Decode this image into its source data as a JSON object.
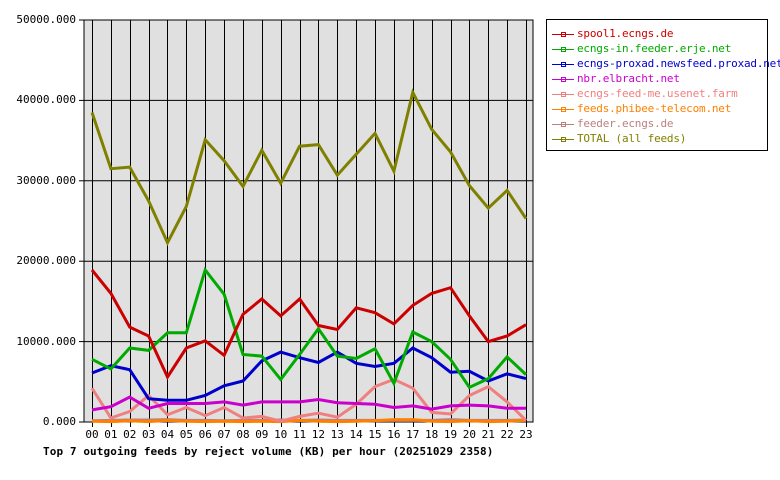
{
  "chart_data": {
    "type": "line",
    "title": "Top 7 outgoing feeds by reject volume (KB) per hour (20251029 2358)",
    "xlabel": "",
    "ylabel": "",
    "ylim": [
      0,
      50000
    ],
    "yticks": [
      "0.000",
      "10000.000",
      "20000.000",
      "30000.000",
      "40000.000",
      "50000.000"
    ],
    "grid": true,
    "legend_position": "right",
    "categories": [
      "00",
      "01",
      "02",
      "03",
      "04",
      "05",
      "06",
      "07",
      "08",
      "09",
      "10",
      "11",
      "12",
      "13",
      "14",
      "15",
      "16",
      "17",
      "18",
      "19",
      "20",
      "21",
      "22",
      "23"
    ],
    "series": [
      {
        "name": "spool1.ecngs.de",
        "color": "#cc0000",
        "values": [
          18900,
          16000,
          11800,
          10700,
          5600,
          9200,
          10100,
          8300,
          13400,
          15300,
          13200,
          15300,
          12000,
          11500,
          14200,
          13600,
          12200,
          14500,
          16000,
          16700,
          13200,
          10000,
          10700,
          12100
        ]
      },
      {
        "name": "ecngs-in.feeder.erje.net",
        "color": "#00aa00",
        "values": [
          7800,
          6600,
          9200,
          8900,
          11100,
          11100,
          18900,
          15900,
          8400,
          8200,
          5300,
          8400,
          11600,
          8200,
          7900,
          9100,
          4800,
          11200,
          10000,
          7800,
          4300,
          5400,
          8100,
          5900
        ]
      },
      {
        "name": "ecngs-proxad.newsfeed.proxad.net",
        "color": "#0000cc",
        "values": [
          6100,
          7000,
          6500,
          2900,
          2700,
          2700,
          3300,
          4500,
          5100,
          7600,
          8700,
          8000,
          7400,
          8700,
          7300,
          6900,
          7300,
          9200,
          8000,
          6200,
          6300,
          5100,
          6000,
          5400
        ]
      },
      {
        "name": "nbr.elbracht.net",
        "color": "#cc00cc",
        "values": [
          1500,
          1900,
          3100,
          1700,
          2300,
          2300,
          2300,
          2500,
          2100,
          2500,
          2500,
          2500,
          2800,
          2400,
          2300,
          2200,
          1800,
          2000,
          1600,
          2000,
          2100,
          2000,
          1700,
          1700
        ]
      },
      {
        "name": "ecngs-feed-me.usenet.farm",
        "color": "#f08080",
        "values": [
          4200,
          500,
          1300,
          3300,
          900,
          1800,
          800,
          1800,
          500,
          700,
          100,
          700,
          1100,
          600,
          2200,
          4400,
          5300,
          4200,
          1200,
          1000,
          3300,
          4400,
          2500,
          200
        ]
      },
      {
        "name": "feeds.phibee-telecom.net",
        "color": "#ff8000",
        "values": [
          100,
          50,
          150,
          50,
          200,
          100,
          50,
          100,
          50,
          100,
          50,
          200,
          100,
          50,
          100,
          150,
          300,
          300,
          100,
          50,
          150,
          50,
          100,
          200
        ]
      },
      {
        "name": "feeder.ecngs.de",
        "color": "#bc8080",
        "values": [
          150,
          200,
          250,
          250,
          300,
          200,
          200,
          150,
          200,
          200,
          250,
          200,
          250,
          200,
          200,
          200,
          200,
          200,
          200,
          300,
          200,
          200,
          200,
          250
        ]
      },
      {
        "name": "TOTAL (all feeds)",
        "color": "#808000",
        "values": [
          38500,
          31500,
          31700,
          27500,
          22300,
          26800,
          35100,
          32500,
          29300,
          33800,
          29700,
          34300,
          34500,
          30700,
          33300,
          35900,
          31200,
          41000,
          36400,
          33600,
          29400,
          26600,
          28800,
          25300
        ]
      }
    ]
  }
}
